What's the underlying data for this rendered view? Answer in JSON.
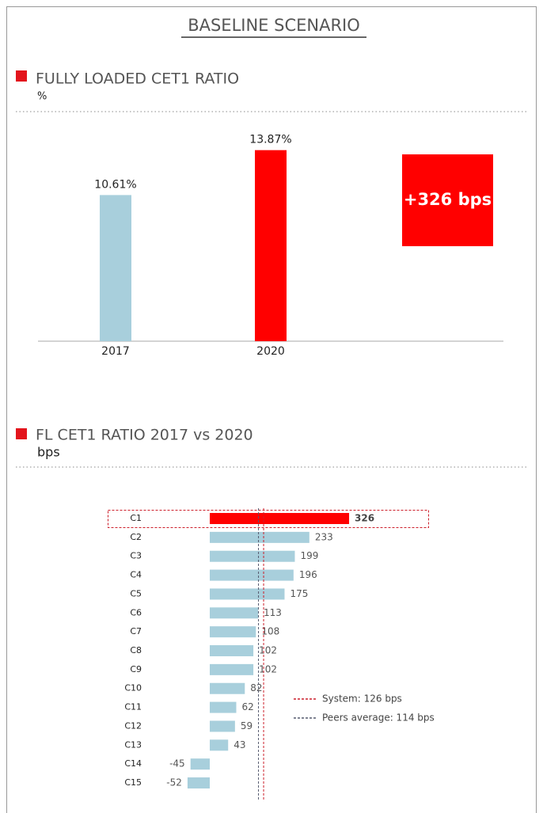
{
  "title": "BASELINE SCENARIO",
  "chart_data": [
    {
      "type": "bar",
      "title": "FULLY LOADED CET1 RATIO",
      "unit": "%",
      "categories": [
        "2017",
        "2020"
      ],
      "values": [
        10.61,
        13.87
      ],
      "value_labels": [
        "10.61%",
        "13.87%"
      ],
      "colors": [
        "#a8cfdc",
        "#ff0000"
      ],
      "ylim": [
        0,
        15
      ],
      "annotation": "+326 bps",
      "annotation_color": "#ff0000"
    },
    {
      "type": "hbar",
      "title": "FL CET1 RATIO 2017 vs 2020",
      "unit": "bps",
      "categories": [
        "C1",
        "C2",
        "C3",
        "C4",
        "C5",
        "C6",
        "C7",
        "C8",
        "C9",
        "C10",
        "C11",
        "C12",
        "C13",
        "C14",
        "C15"
      ],
      "values": [
        326,
        233,
        199,
        196,
        175,
        113,
        108,
        102,
        102,
        82,
        62,
        59,
        43,
        -45,
        -52
      ],
      "colors": [
        "#ff0000",
        "#a8cfdc",
        "#a8cfdc",
        "#a8cfdc",
        "#a8cfdc",
        "#a8cfdc",
        "#a8cfdc",
        "#a8cfdc",
        "#a8cfdc",
        "#a8cfdc",
        "#a8cfdc",
        "#a8cfdc",
        "#a8cfdc",
        "#a8cfdc",
        "#a8cfdc"
      ],
      "xlim": [
        -100,
        400
      ],
      "reference_lines": [
        {
          "name": "System: 126 bps",
          "value": 126,
          "color": "#cc1f2b"
        },
        {
          "name": "Peers average: 114 bps",
          "value": 114,
          "color": "#555a6e"
        }
      ]
    }
  ]
}
